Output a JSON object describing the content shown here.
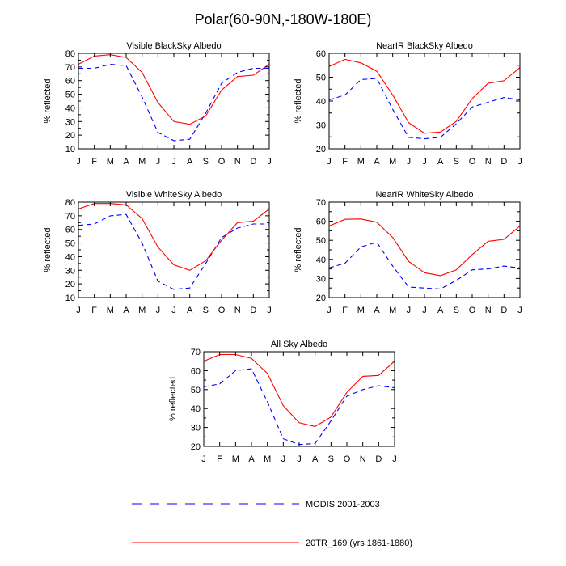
{
  "figure": {
    "title": "Polar(60-90N,-180W-180E)"
  },
  "legend": {
    "items": [
      {
        "label": "MODIS 2001-2003",
        "color": "#0000ff",
        "dash": true
      },
      {
        "label": "20TR_169 (yrs 1861-1880)",
        "color": "#ff0000",
        "dash": false
      }
    ]
  },
  "chart_data": [
    {
      "type": "line",
      "title": "Visible BlackSky Albedo",
      "ylabel": "% reflected",
      "ylim": [
        10,
        80
      ],
      "yticks": [
        10,
        20,
        30,
        40,
        50,
        60,
        70,
        80
      ],
      "x": [
        "J",
        "F",
        "M",
        "A",
        "M",
        "J",
        "J",
        "A",
        "S",
        "O",
        "N",
        "D",
        "J"
      ],
      "series": [
        {
          "name": "MODIS 2001-2003",
          "color": "#0000ff",
          "dash": true,
          "values": [
            69,
            69,
            72,
            71,
            48,
            22,
            16,
            17,
            36,
            58,
            66,
            69,
            69
          ]
        },
        {
          "name": "20TR_169 (yrs 1861-1880)",
          "color": "#ff0000",
          "dash": false,
          "values": [
            72,
            78,
            79,
            77,
            66,
            44,
            30,
            28,
            34,
            53,
            63,
            64,
            72
          ]
        }
      ]
    },
    {
      "type": "line",
      "title": "NearIR BlackSky Albedo",
      "ylabel": "% reflected",
      "ylim": [
        20,
        60
      ],
      "yticks": [
        20,
        30,
        40,
        50,
        60
      ],
      "x": [
        "J",
        "F",
        "M",
        "A",
        "M",
        "J",
        "J",
        "A",
        "S",
        "O",
        "N",
        "D",
        "J"
      ],
      "series": [
        {
          "name": "MODIS 2001-2003",
          "color": "#0000ff",
          "dash": true,
          "values": [
            40.5,
            42.5,
            49,
            49.5,
            36.5,
            24.8,
            24.2,
            24.8,
            30.5,
            37.5,
            39.5,
            41.5,
            40.5
          ]
        },
        {
          "name": "20TR_169 (yrs 1861-1880)",
          "color": "#ff0000",
          "dash": false,
          "values": [
            54.5,
            57.5,
            56,
            52.5,
            42.5,
            31,
            26.5,
            27,
            31.5,
            41,
            47.5,
            48.5,
            54
          ]
        }
      ]
    },
    {
      "type": "line",
      "title": "Visible WhiteSky Albedo",
      "ylabel": "% reflected",
      "ylim": [
        10,
        80
      ],
      "yticks": [
        10,
        20,
        30,
        40,
        50,
        60,
        70,
        80
      ],
      "x": [
        "J",
        "F",
        "M",
        "A",
        "M",
        "J",
        "J",
        "A",
        "S",
        "O",
        "N",
        "D",
        "J"
      ],
      "series": [
        {
          "name": "MODIS 2001-2003",
          "color": "#0000ff",
          "dash": true,
          "values": [
            63,
            64,
            70,
            71,
            50,
            22,
            16,
            17,
            35,
            54,
            61,
            64,
            64
          ]
        },
        {
          "name": "20TR_169 (yrs 1861-1880)",
          "color": "#ff0000",
          "dash": false,
          "values": [
            75,
            79,
            79,
            78,
            68,
            47,
            34,
            30,
            37,
            52,
            65,
            66,
            75
          ]
        }
      ]
    },
    {
      "type": "line",
      "title": "NearIR WhiteSky Albedo",
      "ylabel": "% reflected",
      "ylim": [
        20,
        70
      ],
      "yticks": [
        20,
        30,
        40,
        50,
        60,
        70
      ],
      "x": [
        "J",
        "F",
        "M",
        "A",
        "M",
        "J",
        "J",
        "A",
        "S",
        "O",
        "N",
        "D",
        "J"
      ],
      "series": [
        {
          "name": "MODIS 2001-2003",
          "color": "#0000ff",
          "dash": true,
          "values": [
            35.5,
            38,
            46.5,
            49,
            36.5,
            25.5,
            25,
            24.5,
            29,
            34.5,
            35,
            36.5,
            35.5
          ]
        },
        {
          "name": "20TR_169 (yrs 1861-1880)",
          "color": "#ff0000",
          "dash": false,
          "values": [
            57.5,
            61,
            61.2,
            59.5,
            51.5,
            39,
            33,
            31.5,
            34.5,
            42.5,
            49.5,
            50.5,
            57.5
          ]
        }
      ]
    },
    {
      "type": "line",
      "title": "All Sky Albedo",
      "ylabel": "% reflected",
      "ylim": [
        20,
        70
      ],
      "yticks": [
        20,
        30,
        40,
        50,
        60,
        70
      ],
      "x": [
        "J",
        "F",
        "M",
        "A",
        "M",
        "J",
        "J",
        "A",
        "S",
        "O",
        "N",
        "D",
        "J"
      ],
      "series": [
        {
          "name": "MODIS 2001-2003",
          "color": "#0000ff",
          "dash": true,
          "values": [
            51.5,
            53,
            60,
            61,
            43.5,
            24,
            21,
            21.5,
            33.5,
            46.5,
            50,
            52,
            51
          ]
        },
        {
          "name": "20TR_169 (yrs 1861-1880)",
          "color": "#ff0000",
          "dash": false,
          "values": [
            65,
            68.5,
            68.5,
            66.5,
            58.5,
            41.5,
            32.5,
            30.5,
            35.5,
            48.5,
            57,
            57.5,
            65
          ]
        }
      ]
    }
  ]
}
